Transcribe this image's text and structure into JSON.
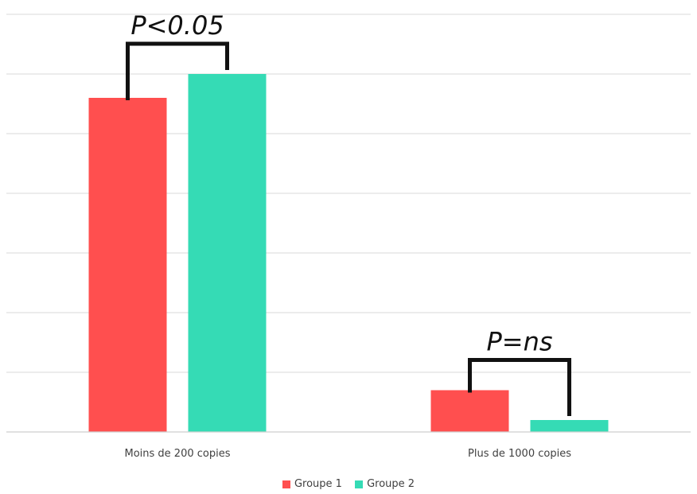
{
  "chart_data": {
    "type": "bar",
    "categories": [
      "Moins de 200 copies",
      "Plus de 1000 copies"
    ],
    "series": [
      {
        "name": "Groupe 1",
        "color": "#ff4f4f",
        "values": [
          5.6,
          0.7
        ]
      },
      {
        "name": "Groupe 2",
        "color": "#35dbb5",
        "values": [
          6.0,
          0.2
        ]
      }
    ],
    "ylim": [
      0,
      7
    ],
    "grid": true,
    "y_tick_labels_visible": false,
    "legend_position": "bottom-center",
    "annotations": [
      {
        "category_index": 0,
        "label": "P<0.05"
      },
      {
        "category_index": 1,
        "label": "P=ns"
      }
    ]
  }
}
